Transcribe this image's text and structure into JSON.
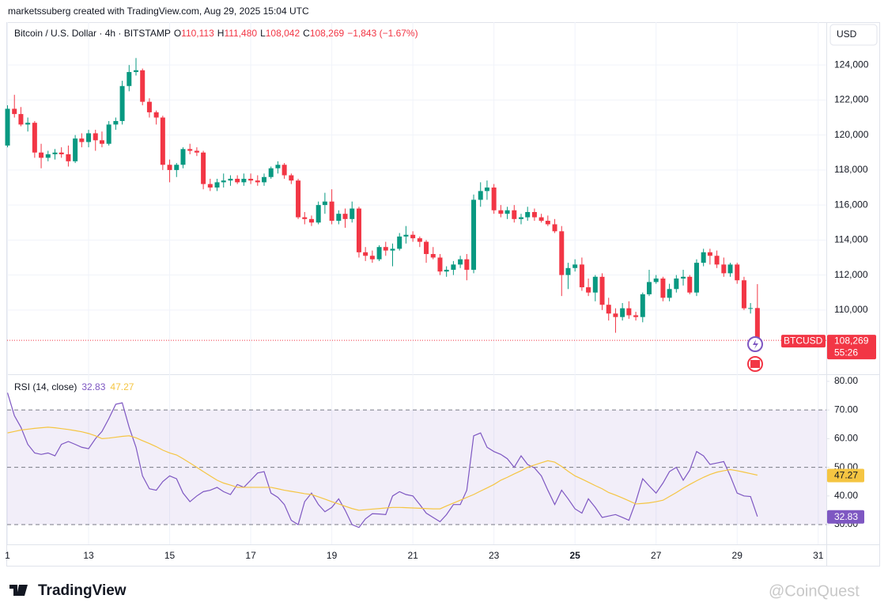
{
  "header": {
    "credit": "marketssuberg created with TradingView.com, Aug 29, 2025 15:04 UTC",
    "currency": "USD",
    "symbol_tag": "BTCUSD",
    "last_price": "108,269",
    "countdown": "55:26",
    "brand": "TradingView",
    "watermark": "@CoinQuest"
  },
  "chart_data": [
    {
      "type": "candlestick",
      "title": "Bitcoin / U.S. Dollar · 4h · BITSTAMP",
      "legend_values": [
        {
          "key": "O",
          "value": "110,113"
        },
        {
          "key": "H",
          "value": "111,480"
        },
        {
          "key": "L",
          "value": "108,042"
        },
        {
          "key": "C",
          "value": "108,269"
        }
      ],
      "change": "−1,843 (−1.67%)",
      "up_color": "#089981",
      "down_color": "#f23645",
      "grid": true,
      "xlim": [
        10.99,
        31.2
      ],
      "ylim": [
        106330,
        126450
      ],
      "xticks": [
        {
          "value": 11,
          "label": "1"
        },
        13,
        15,
        17,
        19,
        21,
        23,
        {
          "value": 25,
          "label": "25"
        },
        27,
        29,
        31
      ],
      "yticks": [
        {
          "value": 110000,
          "label": "110,000"
        },
        {
          "value": 112000,
          "label": "112,000"
        },
        {
          "value": 114000,
          "label": "114,000"
        },
        {
          "value": 116000,
          "label": "116,000"
        },
        {
          "value": 118000,
          "label": "118,000"
        },
        {
          "value": 120000,
          "label": "120,000"
        },
        {
          "value": 122000,
          "label": "122,000"
        },
        {
          "value": 124000,
          "label": "124,000"
        }
      ],
      "x": [
        11,
        11.17,
        11.33,
        11.5,
        11.67,
        11.83,
        12,
        12.17,
        12.33,
        12.5,
        12.67,
        12.83,
        13,
        13.17,
        13.33,
        13.5,
        13.67,
        13.83,
        14,
        14.17,
        14.33,
        14.5,
        14.67,
        14.83,
        15,
        15.17,
        15.33,
        15.5,
        15.67,
        15.83,
        16,
        16.17,
        16.33,
        16.5,
        16.67,
        16.83,
        17,
        17.17,
        17.33,
        17.5,
        17.67,
        17.83,
        18,
        18.17,
        18.33,
        18.5,
        18.67,
        18.83,
        19,
        19.17,
        19.33,
        19.5,
        19.67,
        19.83,
        20,
        20.17,
        20.33,
        20.5,
        20.67,
        20.83,
        21,
        21.17,
        21.33,
        21.5,
        21.67,
        21.83,
        22,
        22.17,
        22.33,
        22.5,
        22.67,
        22.83,
        23,
        23.17,
        23.33,
        23.5,
        23.67,
        23.83,
        24,
        24.17,
        24.33,
        24.5,
        24.67,
        24.83,
        25,
        25.17,
        25.33,
        25.5,
        25.67,
        25.83,
        26,
        26.17,
        26.33,
        26.5,
        26.67,
        26.83,
        27,
        27.17,
        27.33,
        27.5,
        27.67,
        27.83,
        28,
        28.17,
        28.33,
        28.5,
        28.67,
        28.83,
        29,
        29.17,
        29.33,
        29.5
      ],
      "open": [
        119400,
        121500,
        121200,
        120600,
        120700,
        119000,
        118700,
        118900,
        119000,
        118900,
        118500,
        119800,
        119600,
        120100,
        119700,
        119500,
        120600,
        120800,
        122800,
        123600,
        123700,
        121900,
        121300,
        121000,
        118300,
        118000,
        118300,
        119200,
        119100,
        119000,
        117200,
        117000,
        117300,
        117400,
        117500,
        117300,
        117500,
        117400,
        117300,
        117600,
        118100,
        118300,
        117700,
        117400,
        115300,
        115200,
        115000,
        116000,
        116200,
        115100,
        115500,
        115200,
        115800,
        113300,
        113100,
        112900,
        113600,
        113400,
        113500,
        114200,
        114300,
        114100,
        113900,
        113200,
        113000,
        112200,
        112300,
        112600,
        112900,
        112300,
        116300,
        116800,
        117000,
        115700,
        115500,
        115700,
        115200,
        115300,
        115600,
        115300,
        115100,
        114900,
        114500,
        112000,
        112400,
        112600,
        111300,
        111000,
        111900,
        110300,
        109800,
        109600,
        110100,
        109700,
        109600,
        110900,
        111600,
        111800,
        110700,
        111200,
        111800,
        111900,
        111000,
        112700,
        113300,
        113100,
        112600,
        112100,
        112600,
        111700,
        110100,
        110113
      ],
      "high": [
        121700,
        122300,
        121600,
        121000,
        120800,
        119500,
        119100,
        119200,
        119300,
        119400,
        120000,
        120100,
        120300,
        120300,
        120200,
        120800,
        121000,
        123100,
        124000,
        124400,
        123800,
        122100,
        121400,
        121100,
        118600,
        118400,
        119300,
        119500,
        119300,
        119100,
        117500,
        117500,
        117800,
        117700,
        117700,
        117800,
        117800,
        117700,
        117800,
        118200,
        118500,
        118400,
        117800,
        117500,
        115600,
        115400,
        116200,
        116700,
        116900,
        115700,
        115800,
        116200,
        115900,
        113600,
        113400,
        113700,
        113900,
        113800,
        114400,
        114800,
        114500,
        114200,
        114000,
        113600,
        113200,
        112500,
        112800,
        113100,
        113200,
        116600,
        117300,
        117400,
        117200,
        116000,
        115900,
        116000,
        115500,
        115900,
        115800,
        115500,
        115400,
        115200,
        114800,
        112700,
        112900,
        113000,
        111800,
        112000,
        112100,
        110700,
        110100,
        110400,
        110500,
        109900,
        111000,
        112300,
        112000,
        111900,
        111500,
        112000,
        112300,
        112000,
        112900,
        113500,
        113500,
        113400,
        113000,
        112700,
        112700,
        111900,
        110400,
        111480
      ],
      "low": [
        119300,
        121000,
        120500,
        120200,
        118700,
        118100,
        118500,
        118600,
        118700,
        118200,
        118400,
        119300,
        119300,
        119100,
        119300,
        119400,
        120300,
        120600,
        122500,
        123400,
        121700,
        121000,
        120600,
        118000,
        117300,
        117600,
        118100,
        118900,
        118800,
        116900,
        116800,
        116800,
        117000,
        117100,
        117200,
        117100,
        117200,
        117100,
        117100,
        117500,
        117800,
        117500,
        117200,
        115200,
        114900,
        114800,
        114900,
        115500,
        114900,
        114900,
        114700,
        115000,
        113000,
        112800,
        112700,
        112800,
        113100,
        112500,
        113400,
        113800,
        113900,
        113600,
        112700,
        112900,
        112000,
        111900,
        112000,
        112400,
        111700,
        112100,
        115900,
        116300,
        115500,
        115300,
        115200,
        115000,
        114900,
        115100,
        115100,
        115000,
        114800,
        114400,
        110800,
        111200,
        112200,
        111100,
        110800,
        110500,
        110000,
        109400,
        108700,
        109400,
        109500,
        109400,
        109300,
        110800,
        111500,
        110500,
        110500,
        111000,
        111400,
        110900,
        110800,
        112500,
        112600,
        112400,
        111900,
        111900,
        111500,
        110000,
        109800,
        108042
      ],
      "close": [
        121500,
        121200,
        120600,
        120700,
        119000,
        118700,
        118900,
        119000,
        118900,
        118500,
        119800,
        119600,
        120100,
        119700,
        119500,
        120600,
        120800,
        122800,
        123600,
        123700,
        121900,
        121300,
        121000,
        118300,
        118000,
        118300,
        119200,
        119100,
        119000,
        117200,
        117000,
        117300,
        117400,
        117500,
        117300,
        117500,
        117400,
        117300,
        117600,
        118100,
        118300,
        117700,
        117400,
        115300,
        115200,
        115000,
        116000,
        116200,
        115100,
        115500,
        115200,
        115800,
        113300,
        113100,
        112900,
        113600,
        113400,
        113500,
        114200,
        114300,
        114100,
        113900,
        113200,
        113000,
        112200,
        112300,
        112600,
        112900,
        112300,
        116300,
        116800,
        117000,
        115700,
        115500,
        115700,
        115200,
        115300,
        115600,
        115300,
        115100,
        114900,
        114500,
        112000,
        112400,
        112600,
        111300,
        111000,
        111900,
        110300,
        109800,
        109600,
        110100,
        109700,
        109600,
        110900,
        111600,
        111800,
        110700,
        111200,
        111800,
        111900,
        111000,
        112700,
        113300,
        113100,
        112600,
        112100,
        112600,
        111700,
        110100,
        110113,
        108269
      ]
    },
    {
      "type": "line",
      "title": "RSI (14, close)",
      "legend_values": [
        "32.83",
        "47.27"
      ],
      "xlim": [
        10.99,
        31.2
      ],
      "ylim": [
        23.1,
        82.2
      ],
      "yticks": [
        {
          "value": 30,
          "label": "30.00"
        },
        {
          "value": 40,
          "label": "40.00"
        },
        {
          "value": 50,
          "label": "50.00"
        },
        {
          "value": 60,
          "label": "60.00"
        },
        {
          "value": 70,
          "label": "70.00"
        },
        {
          "value": 80,
          "label": "80.00"
        }
      ],
      "levels": [
        70,
        50,
        30
      ],
      "band": [
        30,
        70
      ],
      "band_color": "rgba(126,87,194,0.1)",
      "series": [
        {
          "color": "#7e57c2",
          "values": [
            76,
            68,
            64,
            58,
            55,
            54.5,
            55,
            54,
            58,
            59,
            58,
            57,
            56.5,
            60,
            62.5,
            67,
            72,
            72.5,
            64,
            57,
            47,
            42.5,
            42,
            45,
            47,
            46,
            41,
            38,
            40,
            41.5,
            42,
            43,
            41.5,
            40.5,
            44,
            43,
            45.5,
            48,
            48.5,
            41,
            39.5,
            37,
            31.5,
            30,
            38,
            41,
            37,
            34.5,
            36,
            39,
            35,
            30,
            29,
            32,
            33.8,
            33.7,
            33.5,
            40,
            41.5,
            40.5,
            40,
            37,
            34,
            32.5,
            31,
            33.5,
            37,
            37,
            42,
            61,
            62,
            57,
            55.5,
            54.5,
            53,
            50,
            54,
            51,
            49.8,
            47,
            42,
            37,
            42,
            39,
            35.5,
            34,
            39,
            36,
            32.5,
            33,
            33.5,
            32.5,
            31.5,
            38,
            46,
            43.5,
            41,
            44.5,
            48.5,
            50,
            45.5,
            49,
            55.5,
            54,
            51,
            51.5,
            52,
            47,
            41,
            40,
            39.8,
            32.83
          ]
        },
        {
          "color": "#f5c542",
          "values": [
            62,
            62.5,
            63,
            63.3,
            63.6,
            63.8,
            64,
            63.8,
            63.5,
            63.2,
            62.8,
            62.4,
            61.8,
            61,
            60,
            60.2,
            60.5,
            60.8,
            61,
            60.3,
            59.3,
            58.3,
            57.2,
            56,
            55,
            54.3,
            53,
            51.5,
            50,
            48.5,
            47,
            45.5,
            44.5,
            43.8,
            43,
            43,
            43,
            43,
            43,
            43,
            42.5,
            42,
            41.6,
            41.2,
            40.8,
            40.5,
            39.7,
            38.9,
            38,
            37.2,
            36.4,
            35.6,
            35,
            35.2,
            35.4,
            35.6,
            35.8,
            36,
            36,
            35.9,
            35.8,
            35.7,
            35.6,
            35.5,
            35.5,
            36.5,
            37.5,
            38.5,
            39.5,
            40.5,
            41.7,
            42.8,
            44,
            45.5,
            46.5,
            47.7,
            48.8,
            50,
            50.8,
            51.6,
            52.3,
            51.8,
            50.3,
            48.6,
            47,
            45.9,
            44.8,
            43.6,
            42.5,
            41.2,
            40.3,
            39.3,
            38.3,
            37.2,
            37.4,
            37.6,
            38,
            38.5,
            39.8,
            41.2,
            42.7,
            44,
            45.3,
            46.5,
            47.5,
            48.3,
            48.8,
            49.2,
            48.8,
            48.3,
            47.8,
            47.27
          ]
        }
      ]
    }
  ]
}
